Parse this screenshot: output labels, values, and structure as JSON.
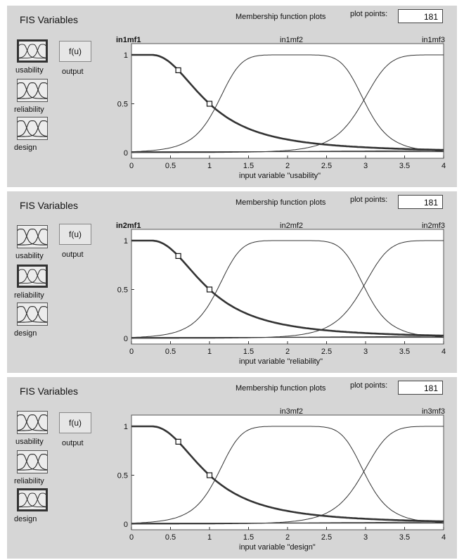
{
  "panels": [
    {
      "fis_title": "FIS Variables",
      "variables": [
        "usability",
        "reliability",
        "design"
      ],
      "selected": 0,
      "output": {
        "label": "output",
        "box": "f(u)"
      },
      "mf_title": "Membership function plots",
      "plot_points_label": "plot points:",
      "plot_points_value": "181",
      "xlabel": "input variable \"usability\"",
      "mf_labels": [
        "in1mf1",
        "in1mf2",
        "in1mf3"
      ],
      "y_ticks": [
        "0",
        "0.5",
        "1"
      ],
      "x_ticks": [
        "0",
        "0.5",
        "1",
        "1.5",
        "2",
        "2.5",
        "3",
        "3.5",
        "4"
      ]
    },
    {
      "fis_title": "FIS Variables",
      "variables": [
        "usability",
        "reliability",
        "design"
      ],
      "selected": 1,
      "output": {
        "label": "output",
        "box": "f(u)"
      },
      "mf_title": "Membership function plots",
      "plot_points_label": "plot points:",
      "plot_points_value": "181",
      "xlabel": "input variable \"reliability\"",
      "mf_labels": [
        "in2mf1",
        "in2mf2",
        "in2mf3"
      ],
      "y_ticks": [
        "0",
        "0.5",
        "1"
      ],
      "x_ticks": [
        "0",
        "0.5",
        "1",
        "1.5",
        "2",
        "2.5",
        "3",
        "3.5",
        "4"
      ]
    },
    {
      "fis_title": "FIS Variables",
      "variables": [
        "usability",
        "reliability",
        "design"
      ],
      "selected": 2,
      "output": {
        "label": "output",
        "box": "f(u)"
      },
      "mf_title": "Membership function plots",
      "plot_points_label": "plot points:",
      "plot_points_value": "181",
      "xlabel": "input variable \"design\"",
      "mf_labels": [
        "",
        "in3mf2",
        "in3mf3"
      ],
      "y_ticks": [
        "0",
        "0.5",
        "1"
      ],
      "x_ticks": [
        "0",
        "0.5",
        "1",
        "1.5",
        "2",
        "2.5",
        "3",
        "3.5",
        "4"
      ]
    }
  ],
  "colors": {
    "panel_bg": "#d6d6d6",
    "plot_bg": "#ffffff",
    "curve": "#333333",
    "selected_curve": "#333333"
  }
}
